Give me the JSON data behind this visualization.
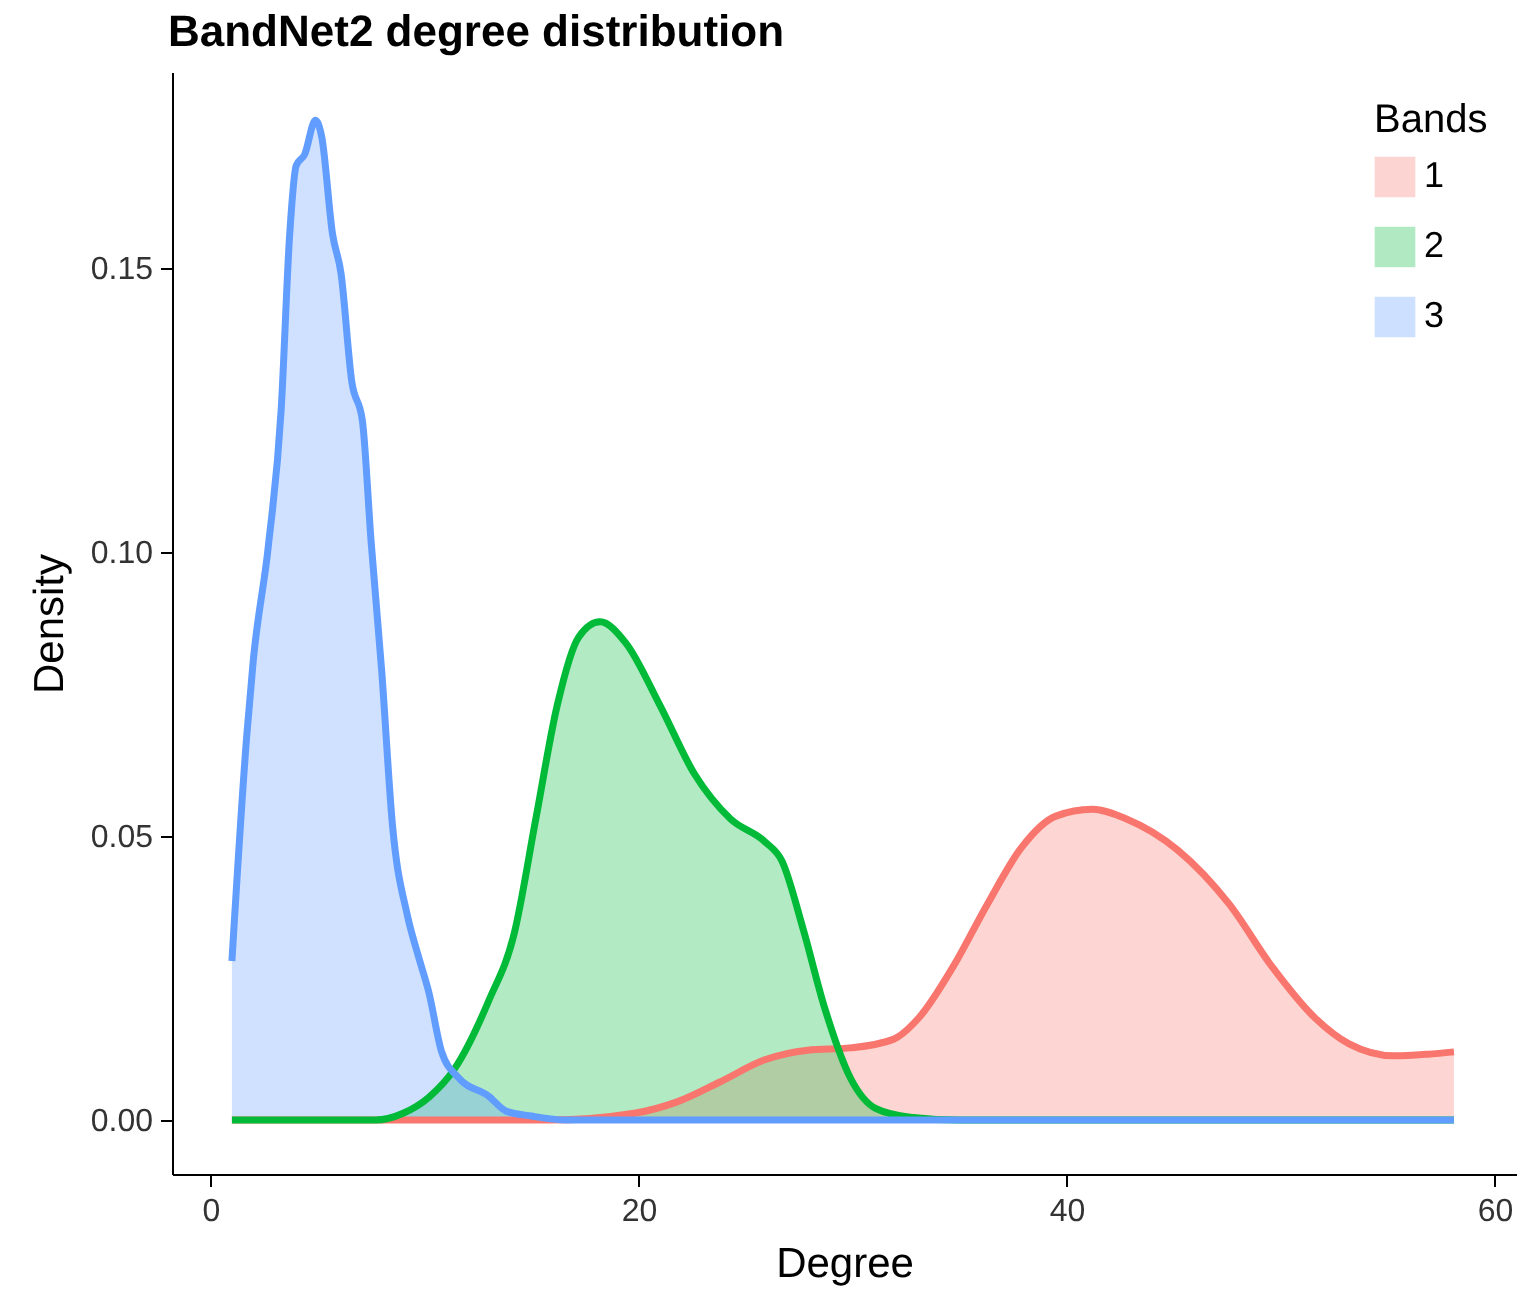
{
  "chart_data": {
    "type": "area",
    "title": "BandNet2 degree distribution",
    "xlabel": "Degree",
    "ylabel": "Density",
    "legend_title": "Bands",
    "legend": "top right",
    "grid": false,
    "line_style": "solid",
    "xlim": [
      -1.8,
      61
    ],
    "ylim": [
      -0.0095,
      0.1845
    ],
    "xticks": [
      0,
      20,
      40,
      60
    ],
    "yticks": [
      {
        "value": 0,
        "label": "0.00"
      },
      {
        "value": 0.05,
        "label": "0.05"
      },
      {
        "value": 0.1,
        "label": "0.10"
      },
      {
        "value": 0.15,
        "label": "0.15"
      }
    ],
    "series": [
      {
        "name": "1",
        "color": "#f8766d",
        "x": [
          1,
          10,
          15.8,
          19.8,
          21.8,
          23.8,
          25.9,
          27.9,
          29.9,
          31.9,
          33.1,
          34.7,
          36.3,
          37.9,
          39.5,
          41.2,
          42.8,
          45.2,
          47.6,
          49.6,
          51.6,
          53.2,
          55.3,
          56.9,
          58.1
        ],
        "values": [
          0,
          0,
          0,
          0.0012,
          0.0032,
          0.0067,
          0.0106,
          0.0123,
          0.0127,
          0.0142,
          0.018,
          0.027,
          0.038,
          0.048,
          0.0535,
          0.0547,
          0.053,
          0.0475,
          0.038,
          0.027,
          0.018,
          0.0134,
          0.0113,
          0.0116,
          0.012
        ]
      },
      {
        "name": "2",
        "color": "#00ba38",
        "x": [
          1,
          7.7,
          9,
          10.2,
          11.4,
          13,
          14.2,
          15.2,
          16.2,
          17.2,
          18.2,
          19.4,
          21,
          22.6,
          24.3,
          25.9,
          26.7,
          27.7,
          28.7,
          29.9,
          31.1,
          32.7,
          35,
          58.1
        ],
        "values": [
          0,
          0,
          0.0012,
          0.004,
          0.009,
          0.021,
          0.033,
          0.053,
          0.073,
          0.085,
          0.0877,
          0.084,
          0.073,
          0.061,
          0.053,
          0.049,
          0.0456,
          0.0335,
          0.0197,
          0.0074,
          0.002,
          0.0005,
          0,
          0
        ]
      },
      {
        "name": "3",
        "color": "#619cff",
        "x": [
          1,
          1.7,
          2,
          2.7,
          3.3,
          3.7,
          4,
          4.4,
          4.9,
          5.2,
          5.7,
          6.1,
          6.6,
          7.1,
          7.5,
          8,
          8.5,
          9.2,
          9.7,
          10.2,
          10.8,
          11.6,
          13,
          13.8,
          15,
          16.6,
          58.1
        ],
        "values": [
          0.028,
          0.068,
          0.081,
          0.101,
          0.125,
          0.156,
          0.168,
          0.17,
          0.176,
          0.173,
          0.156,
          0.149,
          0.13,
          0.123,
          0.102,
          0.079,
          0.052,
          0.036,
          0.029,
          0.0225,
          0.012,
          0.0074,
          0.0042,
          0.0016,
          0.0007,
          0,
          0
        ]
      }
    ]
  }
}
